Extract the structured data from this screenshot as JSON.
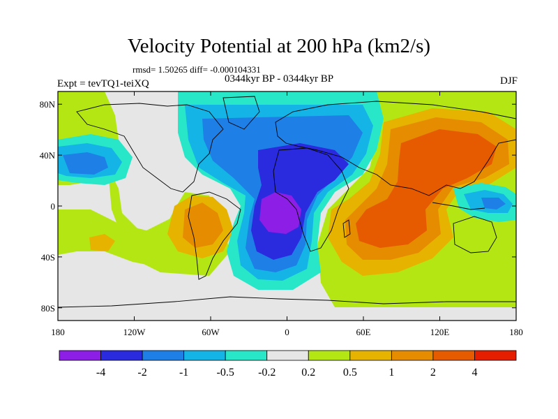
{
  "header": {
    "title": "Velocity Potential at 200 hPa (km2/s)",
    "stats": "rmsd= 1.50265 diff= -0.000104331",
    "subtitle": "0344kyr BP - 0344kyr BP",
    "expt": "Expt = tevTQ1-teiXQ",
    "season": "DJF"
  },
  "chart_data": {
    "type": "heatmap",
    "lon_range": [
      -180,
      180
    ],
    "lat_range": [
      -90,
      90
    ],
    "x_ticks": [
      {
        "lon": -180,
        "label": "180"
      },
      {
        "lon": -120,
        "label": "120W"
      },
      {
        "lon": -60,
        "label": "60W"
      },
      {
        "lon": 0,
        "label": "0"
      },
      {
        "lon": 60,
        "label": "60E"
      },
      {
        "lon": 120,
        "label": "120E"
      },
      {
        "lon": 180,
        "label": "180"
      }
    ],
    "y_ticks": [
      {
        "lat": 80,
        "label": "80N"
      },
      {
        "lat": 40,
        "label": "40N"
      },
      {
        "lat": 0,
        "label": "0"
      },
      {
        "lat": -40,
        "label": "40S"
      },
      {
        "lat": -80,
        "label": "80S"
      }
    ],
    "colorbar": {
      "colors": [
        "#8c1ee6",
        "#2a2adf",
        "#1e7fe6",
        "#14b4e6",
        "#28e6c8",
        "#e6e6e6",
        "#b4e614",
        "#e6b400",
        "#e68c00",
        "#e65a00",
        "#e61e00"
      ],
      "labels": [
        "-4",
        "-2",
        "-1",
        "-0.5",
        "-0.2",
        "0.2",
        "0.5",
        "1",
        "2",
        "4"
      ]
    },
    "levels_by_fill": [
      "-4",
      "-2",
      "-1",
      "-0.5",
      "-0.2",
      "0.2",
      "0.5",
      "1",
      "2",
      "4"
    ]
  }
}
